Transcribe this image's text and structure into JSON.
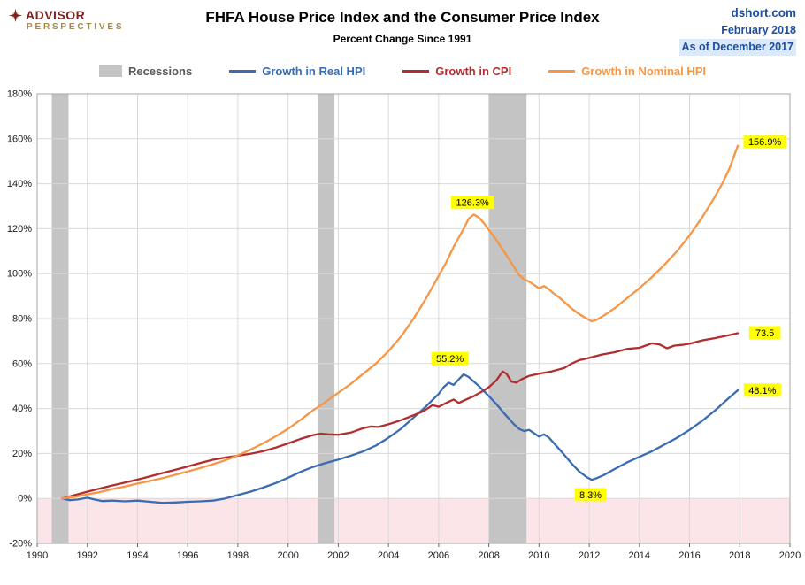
{
  "header": {
    "logo_line1": "ADVISOR",
    "logo_line2": "PERSPECTIVES",
    "title": "FHFA House Price Index and the Consumer Price Index",
    "subtitle": "Percent Change Since 1991",
    "source": "dshort.com",
    "date": "February 2018",
    "as_of": "As of December 2017"
  },
  "legend": [
    {
      "label": "Recessions",
      "swatch": "box",
      "color": "#C4C4C4",
      "text_color": "#595959"
    },
    {
      "label": "Growth in Real HPI",
      "swatch": "line",
      "color": "#3A6CB4",
      "text_color": "#3A6CB4"
    },
    {
      "label": "Growth in CPI",
      "swatch": "line",
      "color": "#B22E2E",
      "text_color": "#B22E2E"
    },
    {
      "label": "Growth in Nominal HPI",
      "swatch": "line",
      "color": "#F79646",
      "text_color": "#F79646"
    }
  ],
  "chart_data": {
    "type": "line",
    "title": "FHFA House Price Index and the Consumer Price Index",
    "subtitle": "Percent Change Since 1991",
    "xlabel": "",
    "ylabel": "",
    "x_range": [
      1990,
      2020
    ],
    "y_range": [
      -20,
      180
    ],
    "x_ticks": [
      1990,
      1992,
      1994,
      1996,
      1998,
      2000,
      2002,
      2004,
      2006,
      2008,
      2010,
      2012,
      2014,
      2016,
      2018,
      2020
    ],
    "y_ticks": [
      180,
      160,
      140,
      120,
      100,
      80,
      60,
      40,
      20,
      0,
      -20
    ],
    "y_tick_suffix": "%",
    "grid": true,
    "grid_color": "#D9D9D9",
    "border_color": "#A6A6A6",
    "tick_color": "#666666",
    "below_zero_fill": "#FBE5E9",
    "recession_color": "#C4C4C4",
    "label_bg": "#FFFF00",
    "legend_position": "top",
    "recessions": [
      [
        1990.58,
        1991.25
      ],
      [
        2001.2,
        2001.85
      ],
      [
        2008.0,
        2009.5
      ]
    ],
    "series": [
      {
        "name": "Growth in Real HPI",
        "color": "#3A6CB4",
        "end_value": 48.1,
        "points": [
          [
            1991.0,
            0
          ],
          [
            1991.3,
            -0.8
          ],
          [
            1991.6,
            -0.5
          ],
          [
            1992.0,
            0.3
          ],
          [
            1992.3,
            -0.5
          ],
          [
            1992.6,
            -1.2
          ],
          [
            1993.0,
            -1.0
          ],
          [
            1993.5,
            -1.3
          ],
          [
            1994.0,
            -1.0
          ],
          [
            1994.5,
            -1.5
          ],
          [
            1995.0,
            -2.0
          ],
          [
            1995.5,
            -1.8
          ],
          [
            1996.0,
            -1.5
          ],
          [
            1996.5,
            -1.3
          ],
          [
            1997.0,
            -1.0
          ],
          [
            1997.5,
            0.0
          ],
          [
            1998.0,
            1.5
          ],
          [
            1998.5,
            3.0
          ],
          [
            1999.0,
            4.8
          ],
          [
            1999.5,
            6.8
          ],
          [
            2000.0,
            9.2
          ],
          [
            2000.5,
            11.8
          ],
          [
            2001.0,
            14.0
          ],
          [
            2001.5,
            15.8
          ],
          [
            2002.0,
            17.3
          ],
          [
            2002.5,
            19.0
          ],
          [
            2003.0,
            21.0
          ],
          [
            2003.5,
            23.5
          ],
          [
            2004.0,
            27.0
          ],
          [
            2004.5,
            31.0
          ],
          [
            2005.0,
            36.0
          ],
          [
            2005.5,
            41.0
          ],
          [
            2006.0,
            46.5
          ],
          [
            2006.2,
            49.5
          ],
          [
            2006.4,
            51.5
          ],
          [
            2006.6,
            50.5
          ],
          [
            2006.8,
            53.0
          ],
          [
            2007.0,
            55.2
          ],
          [
            2007.2,
            54.0
          ],
          [
            2007.4,
            52.0
          ],
          [
            2007.6,
            50.0
          ],
          [
            2008.0,
            45.5
          ],
          [
            2008.3,
            42.0
          ],
          [
            2008.6,
            38.0
          ],
          [
            2009.0,
            33.0
          ],
          [
            2009.2,
            31.0
          ],
          [
            2009.4,
            30.0
          ],
          [
            2009.6,
            30.5
          ],
          [
            2009.8,
            29.0
          ],
          [
            2010.0,
            27.5
          ],
          [
            2010.2,
            28.5
          ],
          [
            2010.4,
            27.0
          ],
          [
            2010.6,
            24.5
          ],
          [
            2010.8,
            22.0
          ],
          [
            2011.0,
            19.5
          ],
          [
            2011.3,
            15.5
          ],
          [
            2011.6,
            12.0
          ],
          [
            2011.9,
            9.5
          ],
          [
            2012.1,
            8.3
          ],
          [
            2012.3,
            9.0
          ],
          [
            2012.6,
            10.5
          ],
          [
            2013.0,
            13.0
          ],
          [
            2013.5,
            16.0
          ],
          [
            2014.0,
            18.5
          ],
          [
            2014.5,
            21.0
          ],
          [
            2015.0,
            24.0
          ],
          [
            2015.5,
            27.0
          ],
          [
            2016.0,
            30.5
          ],
          [
            2016.5,
            34.5
          ],
          [
            2017.0,
            39.0
          ],
          [
            2017.3,
            42.0
          ],
          [
            2017.6,
            45.0
          ],
          [
            2017.92,
            48.1
          ]
        ]
      },
      {
        "name": "Growth in CPI",
        "color": "#B22E2E",
        "end_value": 73.5,
        "points": [
          [
            1991.0,
            0
          ],
          [
            1991.5,
            1.5
          ],
          [
            1992.0,
            3.0
          ],
          [
            1992.5,
            4.4
          ],
          [
            1993.0,
            5.8
          ],
          [
            1993.5,
            7.1
          ],
          [
            1994.0,
            8.4
          ],
          [
            1994.5,
            9.8
          ],
          [
            1995.0,
            11.3
          ],
          [
            1995.5,
            12.7
          ],
          [
            1996.0,
            14.2
          ],
          [
            1996.5,
            15.8
          ],
          [
            1997.0,
            17.2
          ],
          [
            1997.5,
            18.2
          ],
          [
            1998.0,
            19.0
          ],
          [
            1998.5,
            19.9
          ],
          [
            1999.0,
            21.0
          ],
          [
            1999.5,
            22.6
          ],
          [
            2000.0,
            24.5
          ],
          [
            2000.5,
            26.5
          ],
          [
            2001.0,
            28.2
          ],
          [
            2001.3,
            28.8
          ],
          [
            2001.6,
            28.5
          ],
          [
            2002.0,
            28.3
          ],
          [
            2002.5,
            29.3
          ],
          [
            2003.0,
            31.3
          ],
          [
            2003.3,
            32.0
          ],
          [
            2003.6,
            31.8
          ],
          [
            2004.0,
            33.0
          ],
          [
            2004.5,
            34.8
          ],
          [
            2005.0,
            37.0
          ],
          [
            2005.4,
            38.8
          ],
          [
            2005.75,
            41.5
          ],
          [
            2006.0,
            40.8
          ],
          [
            2006.3,
            42.5
          ],
          [
            2006.6,
            44.0
          ],
          [
            2006.8,
            42.5
          ],
          [
            2007.0,
            43.5
          ],
          [
            2007.4,
            45.5
          ],
          [
            2007.8,
            48.0
          ],
          [
            2008.0,
            49.5
          ],
          [
            2008.3,
            52.5
          ],
          [
            2008.55,
            56.5
          ],
          [
            2008.7,
            55.5
          ],
          [
            2008.9,
            52.0
          ],
          [
            2009.1,
            51.5
          ],
          [
            2009.3,
            53.0
          ],
          [
            2009.6,
            54.5
          ],
          [
            2010.0,
            55.5
          ],
          [
            2010.5,
            56.5
          ],
          [
            2011.0,
            58.0
          ],
          [
            2011.3,
            60.0
          ],
          [
            2011.6,
            61.5
          ],
          [
            2012.0,
            62.5
          ],
          [
            2012.5,
            64.0
          ],
          [
            2013.0,
            65.0
          ],
          [
            2013.5,
            66.5
          ],
          [
            2014.0,
            67.0
          ],
          [
            2014.5,
            69.0
          ],
          [
            2014.8,
            68.5
          ],
          [
            2015.1,
            66.8
          ],
          [
            2015.4,
            68.0
          ],
          [
            2015.7,
            68.3
          ],
          [
            2016.0,
            68.8
          ],
          [
            2016.5,
            70.3
          ],
          [
            2017.0,
            71.3
          ],
          [
            2017.5,
            72.5
          ],
          [
            2017.92,
            73.5
          ]
        ]
      },
      {
        "name": "Growth in Nominal HPI",
        "color": "#F79646",
        "end_value": 156.9,
        "points": [
          [
            1991.0,
            0
          ],
          [
            1991.5,
            0.7
          ],
          [
            1992.0,
            1.8
          ],
          [
            1992.5,
            2.8
          ],
          [
            1993.0,
            4.2
          ],
          [
            1993.5,
            5.3
          ],
          [
            1994.0,
            6.6
          ],
          [
            1994.5,
            7.8
          ],
          [
            1995.0,
            9.0
          ],
          [
            1995.5,
            10.5
          ],
          [
            1996.0,
            12.0
          ],
          [
            1996.5,
            13.5
          ],
          [
            1997.0,
            15.2
          ],
          [
            1997.5,
            17.0
          ],
          [
            1998.0,
            19.2
          ],
          [
            1998.5,
            21.7
          ],
          [
            1999.0,
            24.5
          ],
          [
            1999.5,
            27.6
          ],
          [
            2000.0,
            31.0
          ],
          [
            2000.5,
            35.0
          ],
          [
            2001.0,
            39.2
          ],
          [
            2001.5,
            43.0
          ],
          [
            2002.0,
            47.0
          ],
          [
            2002.5,
            51.0
          ],
          [
            2003.0,
            55.5
          ],
          [
            2003.5,
            60.0
          ],
          [
            2004.0,
            65.5
          ],
          [
            2004.5,
            72.0
          ],
          [
            2005.0,
            80.0
          ],
          [
            2005.5,
            89.0
          ],
          [
            2006.0,
            99.0
          ],
          [
            2006.3,
            105.0
          ],
          [
            2006.6,
            112.0
          ],
          [
            2007.0,
            120.0
          ],
          [
            2007.2,
            124.5
          ],
          [
            2007.4,
            126.3
          ],
          [
            2007.6,
            125.0
          ],
          [
            2007.8,
            122.5
          ],
          [
            2008.0,
            119.5
          ],
          [
            2008.3,
            115.0
          ],
          [
            2008.6,
            110.0
          ],
          [
            2009.0,
            103.0
          ],
          [
            2009.2,
            99.5
          ],
          [
            2009.4,
            97.5
          ],
          [
            2009.6,
            96.5
          ],
          [
            2009.8,
            95.0
          ],
          [
            2010.0,
            93.5
          ],
          [
            2010.2,
            94.5
          ],
          [
            2010.4,
            93.0
          ],
          [
            2010.6,
            91.0
          ],
          [
            2010.8,
            89.5
          ],
          [
            2011.0,
            87.5
          ],
          [
            2011.3,
            84.5
          ],
          [
            2011.6,
            82.0
          ],
          [
            2011.9,
            80.0
          ],
          [
            2012.1,
            78.8
          ],
          [
            2012.3,
            79.5
          ],
          [
            2012.6,
            81.5
          ],
          [
            2013.0,
            84.5
          ],
          [
            2013.5,
            89.0
          ],
          [
            2014.0,
            93.5
          ],
          [
            2014.5,
            98.5
          ],
          [
            2015.0,
            104.0
          ],
          [
            2015.5,
            110.0
          ],
          [
            2016.0,
            117.0
          ],
          [
            2016.5,
            125.0
          ],
          [
            2017.0,
            134.0
          ],
          [
            2017.3,
            140.0
          ],
          [
            2017.6,
            147.0
          ],
          [
            2017.92,
            156.9
          ]
        ]
      }
    ],
    "annotations": [
      {
        "text": "126.3%",
        "x": 2007.35,
        "y": 131.5
      },
      {
        "text": "156.9%",
        "x": 2019.0,
        "y": 158.5
      },
      {
        "text": "55.2%",
        "x": 2006.45,
        "y": 62
      },
      {
        "text": "73.5",
        "x": 2019.0,
        "y": 73.5
      },
      {
        "text": "48.1%",
        "x": 2018.9,
        "y": 48
      },
      {
        "text": "8.3%",
        "x": 2012.05,
        "y": 1.5
      }
    ]
  }
}
